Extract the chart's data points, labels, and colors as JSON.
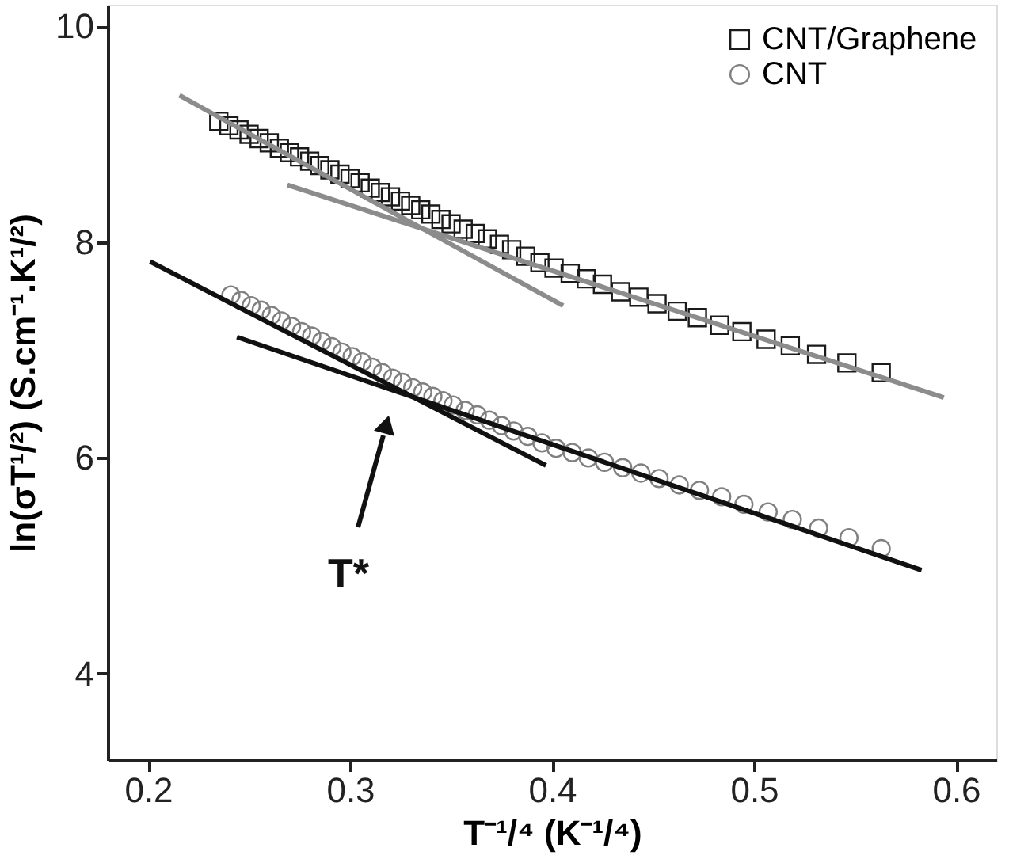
{
  "chart_data": {
    "type": "scatter",
    "xlabel": "T⁻¹/⁴ (K⁻¹/⁴)",
    "ylabel": "ln(σT¹/²) (S.cm⁻¹.K¹/²)",
    "xlim": [
      0.18,
      0.62
    ],
    "ylim": [
      3.2,
      10.2
    ],
    "xticks": [
      0.2,
      0.3,
      0.4,
      0.5,
      0.6
    ],
    "yticks": [
      4,
      6,
      8,
      10
    ],
    "legend": "top right",
    "grid": false,
    "annotations": [
      "T*"
    ],
    "series": [
      {
        "name": "CNT/Graphene",
        "marker": "square",
        "color": "#1a1a1a",
        "x": [
          0.235,
          0.24,
          0.245,
          0.25,
          0.255,
          0.26,
          0.265,
          0.27,
          0.275,
          0.28,
          0.285,
          0.29,
          0.295,
          0.3,
          0.305,
          0.31,
          0.315,
          0.32,
          0.325,
          0.33,
          0.335,
          0.34,
          0.345,
          0.35,
          0.356,
          0.362,
          0.368,
          0.374,
          0.38,
          0.387,
          0.394,
          0.401,
          0.409,
          0.417,
          0.425,
          0.434,
          0.443,
          0.452,
          0.462,
          0.472,
          0.483,
          0.494,
          0.506,
          0.518,
          0.531,
          0.546,
          0.563
        ],
        "values": [
          9.12,
          9.08,
          9.04,
          9.0,
          8.96,
          8.92,
          8.87,
          8.83,
          8.79,
          8.75,
          8.71,
          8.67,
          8.63,
          8.59,
          8.55,
          8.5,
          8.46,
          8.42,
          8.38,
          8.34,
          8.3,
          8.26,
          8.21,
          8.17,
          8.12,
          8.08,
          8.03,
          7.98,
          7.93,
          7.87,
          7.81,
          7.76,
          7.71,
          7.66,
          7.61,
          7.54,
          7.49,
          7.43,
          7.36,
          7.3,
          7.23,
          7.17,
          7.1,
          7.04,
          6.96,
          6.88,
          6.79
        ]
      },
      {
        "name": "CNT",
        "marker": "circle",
        "color": "#808080",
        "x": [
          0.241,
          0.246,
          0.251,
          0.256,
          0.261,
          0.266,
          0.271,
          0.276,
          0.281,
          0.286,
          0.291,
          0.296,
          0.301,
          0.306,
          0.311,
          0.316,
          0.321,
          0.326,
          0.331,
          0.336,
          0.341,
          0.346,
          0.351,
          0.357,
          0.363,
          0.369,
          0.375,
          0.381,
          0.388,
          0.395,
          0.402,
          0.41,
          0.418,
          0.426,
          0.435,
          0.444,
          0.453,
          0.463,
          0.473,
          0.484,
          0.495,
          0.507,
          0.519,
          0.532,
          0.547,
          0.563
        ],
        "values": [
          7.51,
          7.46,
          7.41,
          7.37,
          7.32,
          7.27,
          7.22,
          7.17,
          7.13,
          7.08,
          7.03,
          6.98,
          6.94,
          6.89,
          6.84,
          6.79,
          6.74,
          6.7,
          6.65,
          6.61,
          6.57,
          6.53,
          6.49,
          6.44,
          6.4,
          6.35,
          6.3,
          6.25,
          6.2,
          6.14,
          6.09,
          6.05,
          6.0,
          5.96,
          5.91,
          5.86,
          5.81,
          5.75,
          5.7,
          5.64,
          5.57,
          5.5,
          5.43,
          5.35,
          5.26,
          5.16
        ]
      },
      {
        "type": "line",
        "color": "#8c8c8c",
        "x": [
          0.2155,
          0.4055
        ],
        "values": [
          9.36,
          7.41
        ]
      },
      {
        "type": "line",
        "color": "#8c8c8c",
        "x": [
          0.269,
          0.594
        ],
        "values": [
          8.53,
          6.56
        ]
      },
      {
        "type": "line",
        "color": "#111111",
        "x": [
          0.201,
          0.397
        ],
        "values": [
          7.82,
          5.93
        ]
      },
      {
        "type": "line",
        "color": "#111111",
        "x": [
          0.244,
          0.583
        ],
        "values": [
          7.12,
          4.96
        ]
      }
    ]
  }
}
